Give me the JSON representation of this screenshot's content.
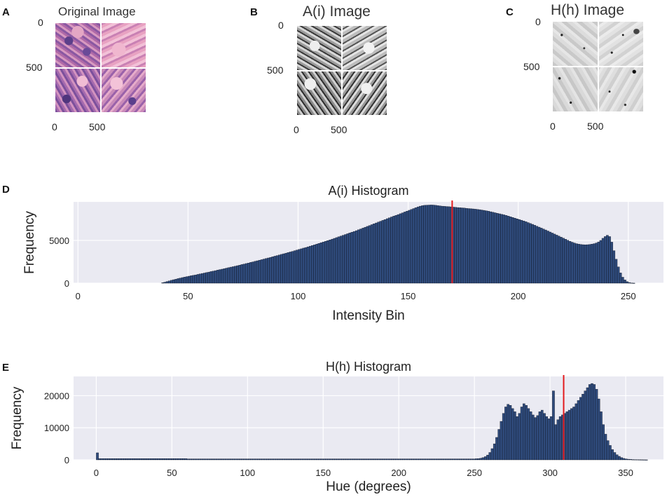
{
  "panels": {
    "a": {
      "letter": "A",
      "title": "Original Image",
      "y_ticks": [
        "0",
        "500"
      ],
      "x_ticks": [
        "0",
        "500"
      ]
    },
    "b": {
      "letter": "B",
      "title": "A(i) Image",
      "y_ticks": [
        "0",
        "500"
      ],
      "x_ticks": [
        "0",
        "500"
      ]
    },
    "c": {
      "letter": "C",
      "title": "H(h) Image",
      "y_ticks": [
        "0",
        "500"
      ],
      "x_ticks": [
        "0",
        "500"
      ]
    },
    "d": {
      "letter": "D"
    },
    "e": {
      "letter": "E"
    }
  },
  "colors": {
    "plot_bg": "#eaeaf2",
    "grid": "#ffffff",
    "bar_fill": "#2f4b7c",
    "bar_edge": "#0b0f1a",
    "marker": "#e31a1c"
  },
  "chart_data": [
    {
      "type": "bar",
      "title": "A(i) Histogram",
      "xlabel": "Intensity Bin",
      "ylabel": "Frequency",
      "xlim": [
        -2,
        266
      ],
      "ylim": [
        0,
        9500
      ],
      "x_ticks": [
        0,
        50,
        100,
        150,
        200,
        250
      ],
      "y_ticks": [
        0,
        5000
      ],
      "y_tick_labels": [
        "0",
        "5000"
      ],
      "marker_x": 170,
      "bins_start": 0,
      "values": [
        0,
        0,
        0,
        0,
        0,
        0,
        0,
        0,
        0,
        0,
        0,
        0,
        0,
        0,
        0,
        0,
        0,
        0,
        0,
        0,
        0,
        0,
        0,
        0,
        0,
        0,
        0,
        0,
        0,
        0,
        0,
        0,
        0,
        0,
        0,
        0,
        0,
        0,
        60,
        120,
        200,
        270,
        340,
        410,
        470,
        540,
        600,
        660,
        720,
        770,
        820,
        880,
        920,
        970,
        1030,
        1080,
        1140,
        1190,
        1250,
        1300,
        1360,
        1410,
        1470,
        1530,
        1590,
        1640,
        1700,
        1760,
        1820,
        1880,
        1930,
        1990,
        2050,
        2110,
        2180,
        2240,
        2300,
        2360,
        2430,
        2490,
        2560,
        2620,
        2690,
        2750,
        2820,
        2890,
        2950,
        3020,
        3090,
        3160,
        3230,
        3300,
        3370,
        3440,
        3510,
        3580,
        3650,
        3720,
        3800,
        3870,
        3950,
        4020,
        4100,
        4170,
        4250,
        4330,
        4410,
        4490,
        4570,
        4650,
        4730,
        4810,
        4900,
        4980,
        5060,
        5150,
        5240,
        5330,
        5420,
        5510,
        5600,
        5690,
        5780,
        5870,
        5960,
        6050,
        6140,
        6240,
        6340,
        6440,
        6540,
        6640,
        6740,
        6840,
        6940,
        7040,
        7140,
        7240,
        7340,
        7440,
        7540,
        7640,
        7740,
        7840,
        7930,
        8020,
        8120,
        8220,
        8320,
        8420,
        8520,
        8620,
        8720,
        8820,
        8920,
        9000,
        9060,
        9100,
        9120,
        9130,
        9140,
        9130,
        9100,
        9060,
        9030,
        9000,
        8980,
        8960,
        8940,
        8920,
        8890,
        8870,
        8840,
        8820,
        8800,
        8780,
        8750,
        8720,
        8700,
        8680,
        8650,
        8620,
        8590,
        8550,
        8510,
        8460,
        8410,
        8350,
        8290,
        8230,
        8170,
        8110,
        8050,
        7990,
        7920,
        7840,
        7760,
        7680,
        7600,
        7520,
        7440,
        7360,
        7270,
        7180,
        7080,
        6980,
        6880,
        6770,
        6660,
        6550,
        6440,
        6330,
        6220,
        6100,
        5980,
        5860,
        5740,
        5620,
        5500,
        5380,
        5260,
        5140,
        5020,
        4900,
        4790,
        4700,
        4620,
        4560,
        4520,
        4500,
        4490,
        4500,
        4520,
        4560,
        4620,
        4700,
        4820,
        5000,
        5250,
        5450,
        5600,
        5450,
        4800,
        3800,
        2800,
        1900,
        1200,
        700,
        380,
        180,
        80,
        30,
        10,
        0,
        0,
        0,
        0,
        0,
        0,
        0,
        0
      ]
    },
    {
      "type": "bar",
      "title": "H(h) Histogram",
      "xlabel": "Hue (degrees)",
      "ylabel": "Frequency",
      "xlim": [
        -15,
        375
      ],
      "ylim": [
        0,
        26000
      ],
      "x_ticks": [
        0,
        50,
        100,
        150,
        200,
        250,
        300,
        350
      ],
      "y_ticks": [
        0,
        10000,
        20000
      ],
      "y_tick_labels": [
        "0",
        "10000",
        "20000"
      ],
      "marker_x": 309,
      "bins_start": 0,
      "bin_width": 1.5,
      "values": [
        2200,
        400,
        400,
        400,
        400,
        400,
        400,
        400,
        400,
        400,
        400,
        400,
        400,
        400,
        400,
        400,
        400,
        400,
        400,
        400,
        400,
        400,
        400,
        400,
        400,
        400,
        400,
        400,
        400,
        400,
        400,
        400,
        400,
        400,
        400,
        400,
        400,
        400,
        400,
        400,
        300,
        300,
        300,
        300,
        300,
        300,
        300,
        300,
        300,
        300,
        300,
        300,
        300,
        300,
        300,
        300,
        300,
        300,
        300,
        300,
        300,
        300,
        300,
        300,
        300,
        300,
        300,
        300,
        300,
        300,
        300,
        300,
        300,
        300,
        300,
        300,
        300,
        300,
        300,
        300,
        300,
        300,
        300,
        300,
        300,
        300,
        300,
        300,
        300,
        300,
        300,
        300,
        300,
        300,
        300,
        300,
        300,
        300,
        300,
        300,
        300,
        300,
        300,
        300,
        300,
        300,
        300,
        300,
        300,
        300,
        300,
        300,
        300,
        300,
        300,
        300,
        300,
        300,
        300,
        300,
        300,
        300,
        300,
        300,
        300,
        300,
        300,
        300,
        300,
        300,
        300,
        300,
        300,
        300,
        300,
        300,
        300,
        300,
        300,
        300,
        300,
        300,
        300,
        300,
        300,
        300,
        300,
        300,
        300,
        300,
        300,
        300,
        300,
        300,
        300,
        300,
        300,
        300,
        300,
        300,
        300,
        300,
        300,
        300,
        300,
        300,
        300,
        350,
        400,
        500,
        700,
        1000,
        1500,
        2300,
        3500,
        5000,
        7000,
        9500,
        12000,
        14500,
        16500,
        17300,
        17000,
        16000,
        15000,
        13500,
        14500,
        16500,
        17500,
        17000,
        16000,
        15000,
        14000,
        13200,
        13800,
        15000,
        15500,
        14500,
        13500,
        12800,
        13500,
        21500,
        11000,
        12500,
        13500,
        14000,
        14500,
        15000,
        15500,
        16000,
        16500,
        17500,
        18500,
        19500,
        20500,
        21500,
        22500,
        23500,
        23800,
        23500,
        22000,
        19000,
        15000,
        11000,
        8000,
        6000,
        4500,
        3200,
        2300,
        1600,
        1100,
        700,
        450,
        300,
        200,
        150,
        100,
        80,
        60,
        40,
        30,
        20,
        10,
        0,
        0
      ]
    }
  ]
}
